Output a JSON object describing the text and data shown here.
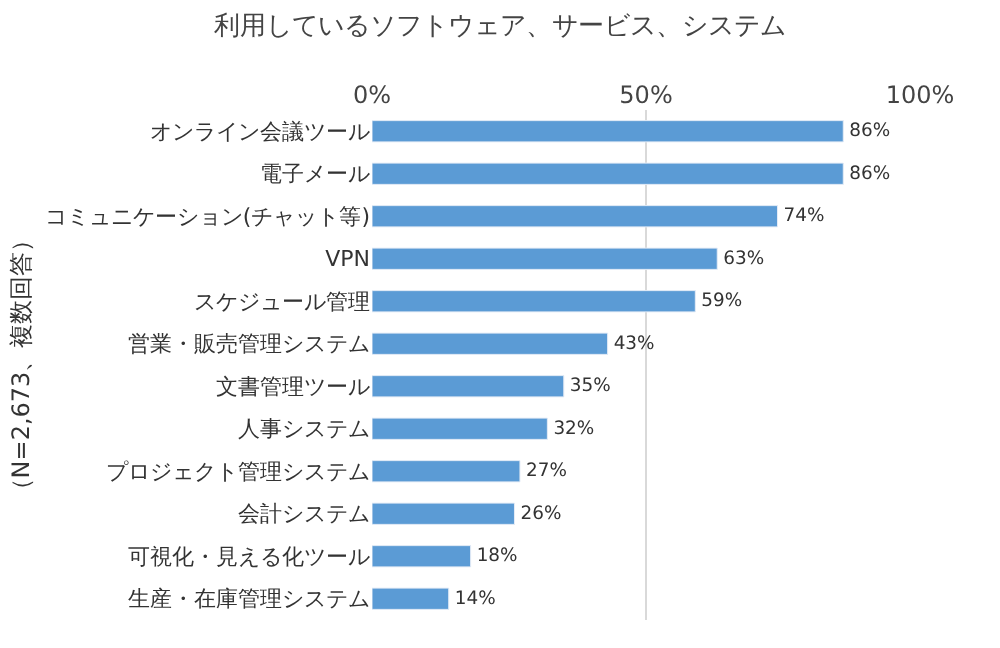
{
  "chart_data": {
    "type": "bar",
    "orientation": "horizontal",
    "title": "利用しているソフトウェア、サービス、システム",
    "ylabel": "（N=2,673、複数回答）",
    "categories": [
      "オンライン会議ツール",
      "電子メール",
      "コミュニケーション(チャット等)",
      "VPN",
      "スケジュール管理",
      "営業・販売管理システム",
      "文書管理ツール",
      "人事システム",
      "プロジェクト管理システム",
      "会計システム",
      "可視化・見える化ツール",
      "生産・在庫管理システム"
    ],
    "values": [
      86,
      86,
      74,
      63,
      59,
      43,
      35,
      32,
      27,
      26,
      18,
      14
    ],
    "value_labels": [
      "86%",
      "86%",
      "74%",
      "63%",
      "59%",
      "43%",
      "35%",
      "32%",
      "27%",
      "26%",
      "18%",
      "14%"
    ],
    "color": "#5b9bd5",
    "xlim": [
      0,
      100
    ],
    "xticks": [
      {
        "value": 0,
        "label": "0%"
      },
      {
        "value": 50,
        "label": "50%"
      },
      {
        "value": 100,
        "label": "100%"
      }
    ],
    "grid": "x"
  }
}
